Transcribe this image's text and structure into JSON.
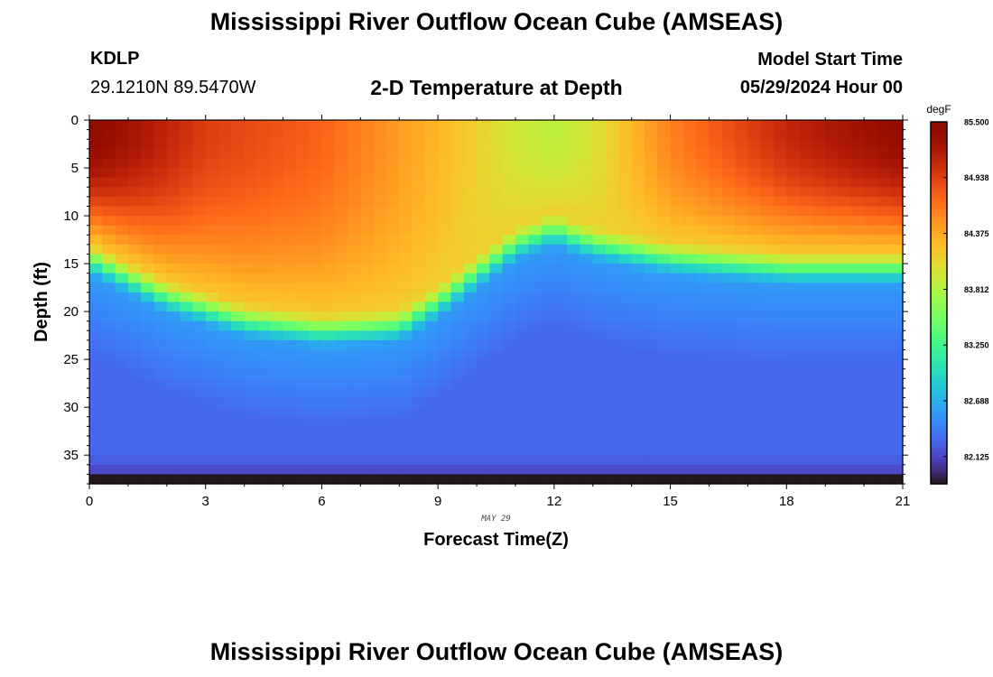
{
  "header": {
    "title": "Mississippi River Outflow Ocean Cube (AMSEAS)",
    "station": "KDLP",
    "coords": "29.1210N  89.5470W",
    "subtitle": "2-D Temperature at Depth",
    "start_label": "Model Start Time",
    "start_value": "05/29/2024 Hour 00"
  },
  "footer": {
    "title": "Mississippi River Outflow Ocean Cube (AMSEAS)"
  },
  "chart_data": {
    "type": "heatmap",
    "title": "2-D Temperature at Depth",
    "xlabel": "Forecast Time(Z)",
    "ylabel": "Depth (ft)",
    "date_label": "MAY 29",
    "x_ticks": [
      "0",
      "3",
      "6",
      "9",
      "12",
      "15",
      "18",
      "21"
    ],
    "y_ticks": [
      "0",
      "5",
      "10",
      "15",
      "20",
      "25",
      "30",
      "35"
    ],
    "xlim": [
      0,
      21
    ],
    "ylim": [
      0,
      38
    ],
    "colorbar": {
      "unit": "degF",
      "min": 81.85,
      "max": 85.5,
      "tick_labels": [
        "85.500",
        "84.938",
        "84.375",
        "83.812",
        "83.250",
        "82.688",
        "82.125"
      ],
      "tick_values": [
        85.5,
        84.938,
        84.375,
        83.812,
        83.25,
        82.688,
        82.125
      ],
      "colormap": "turbo"
    },
    "grid_resolution": {
      "dx_hours": 0.333,
      "dz_ft": 1
    },
    "mixed_layer_depth_ft": {
      "x": [
        0,
        2,
        4,
        6,
        8,
        9,
        10,
        11,
        12,
        13,
        15,
        18,
        21
      ],
      "y": [
        14.5,
        18.5,
        21,
        22,
        21.5,
        19,
        16,
        13,
        11.5,
        13,
        14.5,
        15.5,
        15.5
      ]
    },
    "surface_temp_degF": {
      "x": [
        0,
        3,
        6,
        9,
        11,
        12,
        13,
        15,
        18,
        21
      ],
      "y": [
        85.45,
        84.95,
        84.75,
        84.3,
        83.95,
        83.85,
        84.0,
        84.6,
        85.1,
        85.4
      ]
    },
    "mid_depth_temp_degF": 82.55,
    "deep_temp_degF": 82.3,
    "bottom_temp_degF": 81.85
  }
}
